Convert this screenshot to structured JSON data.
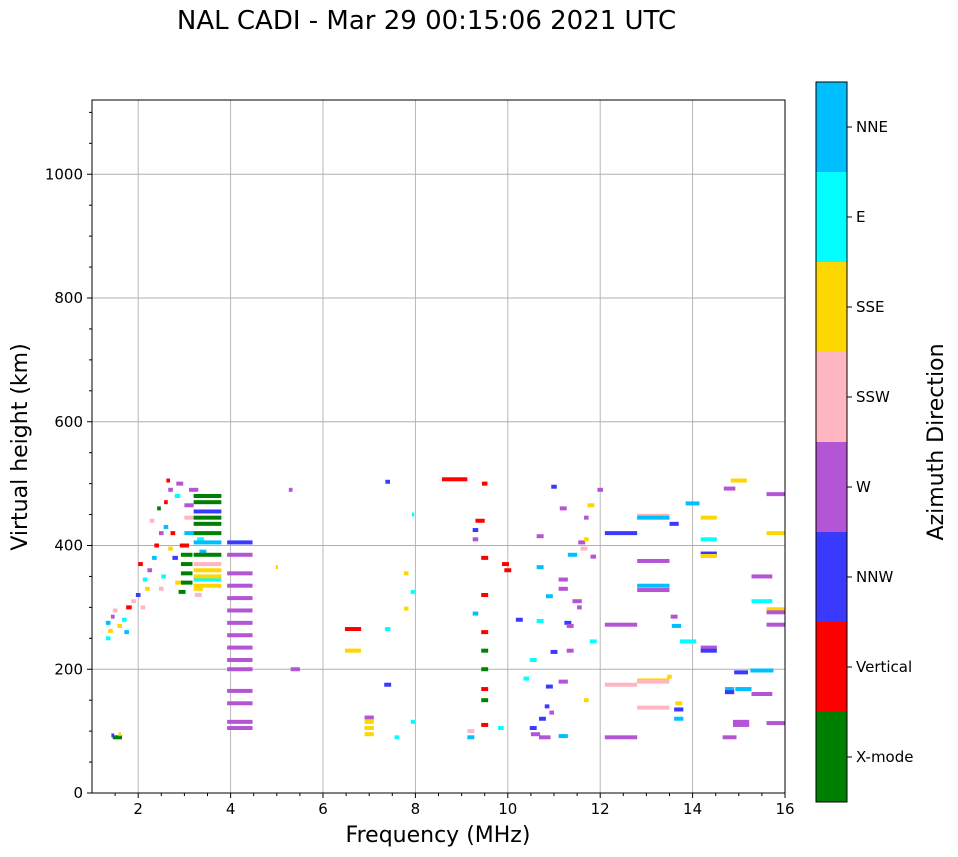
{
  "chart_data": {
    "type": "scatter",
    "title": "NAL CADI - Mar 29 00:15:06 2021 UTC",
    "xlabel": "Frequency (MHz)",
    "ylabel": "Virtual height (km)",
    "xlim": [
      1,
      16
    ],
    "ylim": [
      0,
      1120
    ],
    "xticks": [
      2,
      4,
      6,
      8,
      10,
      12,
      14,
      16
    ],
    "yticks": [
      0,
      200,
      400,
      600,
      800,
      1000
    ],
    "grid": true,
    "colorbar": {
      "label": "Azimuth Direction",
      "categories": [
        {
          "name": "X-mode",
          "color": "#008000"
        },
        {
          "name": "Vertical",
          "color": "#ff0000"
        },
        {
          "name": "NNW",
          "color": "#3a3aff"
        },
        {
          "name": "W",
          "color": "#b455d6"
        },
        {
          "name": "SSW",
          "color": "#ffb6c1"
        },
        {
          "name": "SSE",
          "color": "#ffd700"
        },
        {
          "name": "E",
          "color": "#00ffff"
        },
        {
          "name": "NNE",
          "color": "#00bfff"
        }
      ]
    },
    "echoes": [
      [
        1.55,
        90,
        0.2,
        "X-mode"
      ],
      [
        1.45,
        93,
        0.06,
        "NNW"
      ],
      [
        1.6,
        95,
        0.05,
        "SSE"
      ],
      [
        1.35,
        250,
        0.1,
        "E"
      ],
      [
        1.4,
        262,
        0.1,
        "SSE"
      ],
      [
        1.35,
        275,
        0.1,
        "NNE"
      ],
      [
        1.45,
        285,
        0.08,
        "W"
      ],
      [
        1.5,
        295,
        0.1,
        "SSW"
      ],
      [
        1.6,
        270,
        0.1,
        "SSE"
      ],
      [
        1.7,
        280,
        0.1,
        "E"
      ],
      [
        1.8,
        300,
        0.12,
        "Vertical"
      ],
      [
        1.9,
        310,
        0.1,
        "SSW"
      ],
      [
        1.75,
        260,
        0.1,
        "NNE"
      ],
      [
        2.0,
        320,
        0.1,
        "NNW"
      ],
      [
        2.1,
        300,
        0.1,
        "SSW"
      ],
      [
        2.2,
        330,
        0.1,
        "SSE"
      ],
      [
        2.05,
        370,
        0.1,
        "Vertical"
      ],
      [
        2.15,
        345,
        0.1,
        "E"
      ],
      [
        2.25,
        360,
        0.1,
        "W"
      ],
      [
        2.35,
        380,
        0.1,
        "NNE"
      ],
      [
        2.4,
        400,
        0.1,
        "Vertical"
      ],
      [
        2.5,
        420,
        0.1,
        "W"
      ],
      [
        2.3,
        440,
        0.1,
        "SSW"
      ],
      [
        2.45,
        460,
        0.08,
        "X-mode"
      ],
      [
        2.6,
        470,
        0.08,
        "Vertical"
      ],
      [
        2.65,
        505,
        0.08,
        "Vertical"
      ],
      [
        2.7,
        490,
        0.1,
        "W"
      ],
      [
        2.9,
        500,
        0.15,
        "W"
      ],
      [
        2.85,
        480,
        0.12,
        "E"
      ],
      [
        2.6,
        430,
        0.1,
        "NNE"
      ],
      [
        2.75,
        420,
        0.1,
        "Vertical"
      ],
      [
        2.7,
        395,
        0.1,
        "SSE"
      ],
      [
        2.8,
        380,
        0.12,
        "NNW"
      ],
      [
        2.9,
        340,
        0.2,
        "SSE"
      ],
      [
        2.95,
        325,
        0.15,
        "X-mode"
      ],
      [
        2.5,
        330,
        0.1,
        "SSW"
      ],
      [
        2.55,
        350,
        0.1,
        "E"
      ],
      [
        3.0,
        400,
        0.2,
        "Vertical"
      ],
      [
        3.05,
        385,
        0.25,
        "X-mode"
      ],
      [
        3.05,
        370,
        0.25,
        "X-mode"
      ],
      [
        3.05,
        355,
        0.25,
        "X-mode"
      ],
      [
        3.05,
        340,
        0.25,
        "X-mode"
      ],
      [
        3.1,
        420,
        0.2,
        "NNE"
      ],
      [
        3.1,
        445,
        0.2,
        "SSW"
      ],
      [
        3.1,
        465,
        0.2,
        "W"
      ],
      [
        3.2,
        490,
        0.2,
        "W"
      ],
      [
        3.3,
        330,
        0.2,
        "SSE"
      ],
      [
        3.3,
        320,
        0.15,
        "SSW"
      ],
      [
        3.4,
        390,
        0.15,
        "NNE"
      ],
      [
        3.35,
        410,
        0.15,
        "E"
      ],
      [
        3.5,
        480,
        0.6,
        "X-mode"
      ],
      [
        3.5,
        470,
        0.6,
        "X-mode"
      ],
      [
        3.5,
        455,
        0.6,
        "NNW"
      ],
      [
        3.5,
        445,
        0.6,
        "X-mode"
      ],
      [
        3.5,
        435,
        0.6,
        "X-mode"
      ],
      [
        3.5,
        420,
        0.6,
        "X-mode"
      ],
      [
        3.5,
        405,
        0.6,
        "NNE"
      ],
      [
        3.5,
        385,
        0.6,
        "X-mode"
      ],
      [
        3.5,
        370,
        0.6,
        "SSW"
      ],
      [
        3.5,
        360,
        0.6,
        "SSE"
      ],
      [
        3.5,
        345,
        0.6,
        "E"
      ],
      [
        3.5,
        335,
        0.6,
        "SSE"
      ],
      [
        3.5,
        350,
        0.6,
        "SSE"
      ],
      [
        4.2,
        405,
        0.55,
        "NNW"
      ],
      [
        4.2,
        385,
        0.55,
        "W"
      ],
      [
        4.2,
        355,
        0.55,
        "W"
      ],
      [
        4.2,
        335,
        0.55,
        "W"
      ],
      [
        4.2,
        315,
        0.55,
        "W"
      ],
      [
        4.2,
        295,
        0.55,
        "W"
      ],
      [
        4.2,
        275,
        0.55,
        "W"
      ],
      [
        4.2,
        255,
        0.55,
        "W"
      ],
      [
        4.2,
        235,
        0.55,
        "W"
      ],
      [
        4.2,
        215,
        0.55,
        "W"
      ],
      [
        4.2,
        200,
        0.55,
        "W"
      ],
      [
        4.2,
        165,
        0.55,
        "W"
      ],
      [
        4.2,
        145,
        0.55,
        "W"
      ],
      [
        4.2,
        115,
        0.55,
        "W"
      ],
      [
        4.2,
        105,
        0.55,
        "W"
      ],
      [
        5.3,
        490,
        0.08,
        "W"
      ],
      [
        5.4,
        200,
        0.2,
        "W"
      ],
      [
        5.0,
        365,
        0.05,
        "SSE"
      ],
      [
        6.65,
        265,
        0.35,
        "Vertical"
      ],
      [
        6.65,
        230,
        0.35,
        "SSE"
      ],
      [
        7.0,
        115,
        0.2,
        "SSE"
      ],
      [
        7.0,
        105,
        0.2,
        "SSE"
      ],
      [
        7.0,
        95,
        0.2,
        "SSE"
      ],
      [
        7.0,
        122,
        0.2,
        "W"
      ],
      [
        7.4,
        503,
        0.1,
        "NNW"
      ],
      [
        7.4,
        175,
        0.15,
        "NNW"
      ],
      [
        7.4,
        265,
        0.12,
        "E"
      ],
      [
        7.6,
        90,
        0.1,
        "E"
      ],
      [
        7.8,
        355,
        0.1,
        "SSE"
      ],
      [
        7.8,
        298,
        0.1,
        "SSE"
      ],
      [
        7.95,
        325,
        0.1,
        "E"
      ],
      [
        7.95,
        115,
        0.1,
        "E"
      ],
      [
        7.95,
        450,
        0.05,
        "E"
      ],
      [
        8.85,
        507,
        0.55,
        "Vertical"
      ],
      [
        9.3,
        425,
        0.12,
        "NNW"
      ],
      [
        9.3,
        410,
        0.12,
        "W"
      ],
      [
        9.3,
        290,
        0.12,
        "NNE"
      ],
      [
        9.2,
        90,
        0.15,
        "NNE"
      ],
      [
        9.2,
        100,
        0.15,
        "SSW"
      ],
      [
        9.4,
        440,
        0.2,
        "Vertical"
      ],
      [
        9.5,
        500,
        0.12,
        "Vertical"
      ],
      [
        9.5,
        380,
        0.15,
        "Vertical"
      ],
      [
        9.5,
        320,
        0.15,
        "Vertical"
      ],
      [
        9.5,
        260,
        0.15,
        "Vertical"
      ],
      [
        9.5,
        230,
        0.15,
        "X-mode"
      ],
      [
        9.5,
        200,
        0.15,
        "X-mode"
      ],
      [
        9.5,
        168,
        0.15,
        "Vertical"
      ],
      [
        9.5,
        110,
        0.15,
        "Vertical"
      ],
      [
        9.5,
        150,
        0.15,
        "X-mode"
      ],
      [
        9.85,
        105,
        0.12,
        "E"
      ],
      [
        9.95,
        370,
        0.15,
        "Vertical"
      ],
      [
        10.0,
        360,
        0.15,
        "Vertical"
      ],
      [
        10.25,
        280,
        0.15,
        "NNW"
      ],
      [
        10.4,
        185,
        0.12,
        "E"
      ],
      [
        10.55,
        215,
        0.15,
        "E"
      ],
      [
        10.7,
        278,
        0.15,
        "E"
      ],
      [
        10.7,
        365,
        0.15,
        "NNE"
      ],
      [
        10.7,
        415,
        0.15,
        "W"
      ],
      [
        10.6,
        95,
        0.2,
        "W"
      ],
      [
        10.55,
        105,
        0.15,
        "NNW"
      ],
      [
        10.75,
        120,
        0.15,
        "NNW"
      ],
      [
        10.8,
        90,
        0.25,
        "W"
      ],
      [
        10.85,
        140,
        0.1,
        "NNW"
      ],
      [
        10.9,
        172,
        0.15,
        "NNW"
      ],
      [
        10.9,
        318,
        0.15,
        "NNE"
      ],
      [
        11.0,
        228,
        0.15,
        "NNW"
      ],
      [
        11.0,
        495,
        0.12,
        "NNW"
      ],
      [
        10.95,
        130,
        0.1,
        "W"
      ],
      [
        11.2,
        460,
        0.15,
        "W"
      ],
      [
        11.2,
        345,
        0.2,
        "W"
      ],
      [
        11.2,
        330,
        0.2,
        "W"
      ],
      [
        11.2,
        180,
        0.2,
        "W"
      ],
      [
        11.2,
        92,
        0.2,
        "NNE"
      ],
      [
        11.3,
        275,
        0.15,
        "NNW"
      ],
      [
        11.35,
        230,
        0.15,
        "W"
      ],
      [
        11.35,
        270,
        0.15,
        "W"
      ],
      [
        11.4,
        385,
        0.2,
        "NNE"
      ],
      [
        11.5,
        310,
        0.2,
        "W"
      ],
      [
        11.55,
        300,
        0.1,
        "W"
      ],
      [
        11.6,
        405,
        0.15,
        "W"
      ],
      [
        11.65,
        395,
        0.15,
        "SSW"
      ],
      [
        11.7,
        410,
        0.1,
        "SSE"
      ],
      [
        11.7,
        445,
        0.1,
        "W"
      ],
      [
        11.7,
        150,
        0.1,
        "SSE"
      ],
      [
        11.8,
        465,
        0.15,
        "SSE"
      ],
      [
        11.85,
        245,
        0.15,
        "E"
      ],
      [
        11.85,
        382,
        0.12,
        "W"
      ],
      [
        12.0,
        490,
        0.12,
        "W"
      ],
      [
        12.45,
        420,
        0.7,
        "NNW"
      ],
      [
        12.45,
        272,
        0.7,
        "W"
      ],
      [
        12.45,
        175,
        0.7,
        "SSW"
      ],
      [
        12.45,
        90,
        0.7,
        "W"
      ],
      [
        13.15,
        448,
        0.7,
        "SSW"
      ],
      [
        13.15,
        445,
        0.7,
        "NNE"
      ],
      [
        13.15,
        375,
        0.7,
        "W"
      ],
      [
        13.15,
        335,
        0.7,
        "NNE"
      ],
      [
        13.15,
        328,
        0.7,
        "W"
      ],
      [
        13.15,
        182,
        0.7,
        "SSE"
      ],
      [
        13.15,
        180,
        0.7,
        "SSW"
      ],
      [
        13.15,
        138,
        0.7,
        "SSW"
      ],
      [
        13.5,
        188,
        0.1,
        "SSE"
      ],
      [
        13.6,
        435,
        0.2,
        "NNW"
      ],
      [
        13.6,
        285,
        0.15,
        "W"
      ],
      [
        13.65,
        270,
        0.2,
        "NNE"
      ],
      [
        13.7,
        145,
        0.15,
        "SSE"
      ],
      [
        13.7,
        135,
        0.2,
        "NNW"
      ],
      [
        13.7,
        120,
        0.2,
        "NNE"
      ],
      [
        13.9,
        245,
        0.35,
        "E"
      ],
      [
        14.0,
        468,
        0.3,
        "NNE"
      ],
      [
        14.35,
        445,
        0.35,
        "SSE"
      ],
      [
        14.35,
        410,
        0.35,
        "E"
      ],
      [
        14.35,
        387,
        0.35,
        "NNW"
      ],
      [
        14.35,
        383,
        0.35,
        "SSE"
      ],
      [
        14.35,
        235,
        0.35,
        "W"
      ],
      [
        14.35,
        230,
        0.35,
        "NNW"
      ],
      [
        14.8,
        492,
        0.25,
        "W"
      ],
      [
        14.8,
        168,
        0.2,
        "NNE"
      ],
      [
        14.8,
        163,
        0.2,
        "NNW"
      ],
      [
        14.8,
        90,
        0.3,
        "W"
      ],
      [
        15.0,
        505,
        0.35,
        "SSE"
      ],
      [
        15.1,
        168,
        0.35,
        "NNE"
      ],
      [
        15.05,
        195,
        0.3,
        "NNW"
      ],
      [
        15.05,
        115,
        0.35,
        "W"
      ],
      [
        15.05,
        110,
        0.35,
        "W"
      ],
      [
        15.5,
        350,
        0.45,
        "W"
      ],
      [
        15.5,
        310,
        0.45,
        "E"
      ],
      [
        15.5,
        198,
        0.5,
        "NNE"
      ],
      [
        15.5,
        160,
        0.45,
        "W"
      ],
      [
        15.8,
        483,
        0.4,
        "W"
      ],
      [
        15.8,
        420,
        0.4,
        "SSE"
      ],
      [
        15.8,
        297,
        0.4,
        "SSE"
      ],
      [
        15.8,
        292,
        0.4,
        "W"
      ],
      [
        15.8,
        272,
        0.4,
        "W"
      ],
      [
        15.8,
        113,
        0.4,
        "W"
      ]
    ]
  }
}
